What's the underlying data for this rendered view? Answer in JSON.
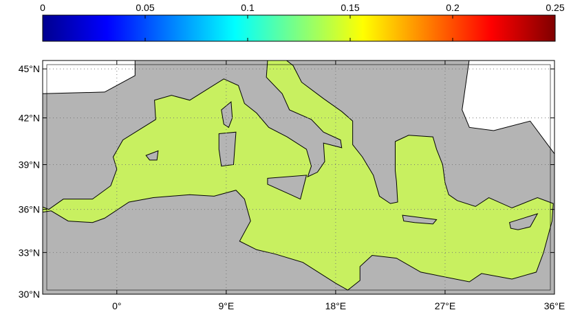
{
  "colorbar": {
    "colormap": "jet",
    "lim": [
      0,
      0.25
    ],
    "ticks": [
      0,
      0.05,
      0.1,
      0.15,
      0.2,
      0.25
    ]
  },
  "map": {
    "projection": "mercator",
    "xlim": [
      -6.1,
      36
    ],
    "ylim": [
      30,
      45.5
    ],
    "grid": true,
    "land_color": "#b4b4b4",
    "sea_color": "#c8f060",
    "xticks": [
      {
        "value": 0,
        "label": "0°"
      },
      {
        "value": 9,
        "label": "9°E"
      },
      {
        "value": 18,
        "label": "18°E"
      },
      {
        "value": 27,
        "label": "27°E"
      },
      {
        "value": 36,
        "label": "36°E"
      }
    ],
    "yticks": [
      {
        "value": 30,
        "label": "30°N"
      },
      {
        "value": 33,
        "label": "33°N"
      },
      {
        "value": 36,
        "label": "36°N"
      },
      {
        "value": 39,
        "label": "39°N"
      },
      {
        "value": 42,
        "label": "42°N"
      },
      {
        "value": 45,
        "label": "45°N"
      }
    ]
  }
}
